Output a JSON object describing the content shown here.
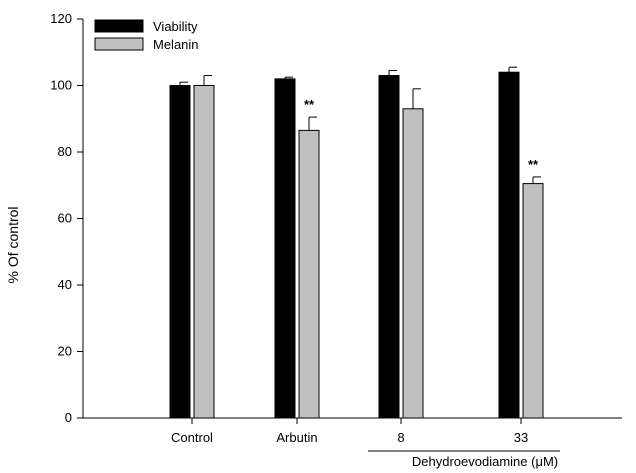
{
  "chart_data": {
    "type": "bar",
    "ylabel": "% Of control",
    "ylim": [
      0,
      120
    ],
    "yticks": [
      0,
      20,
      40,
      60,
      80,
      100,
      120
    ],
    "categories": [
      "Control",
      "Arbutin",
      "8",
      "33"
    ],
    "group_label": "Dehydroevodiamine (μM)",
    "series": [
      {
        "name": "Viability",
        "color": "#000000",
        "values": [
          100,
          102,
          103,
          104
        ],
        "errors": [
          1,
          0.5,
          1.5,
          1.5
        ],
        "annotations": [
          "",
          "",
          "",
          ""
        ]
      },
      {
        "name": "Melanin",
        "color": "#c0c0c0",
        "values": [
          100,
          86.5,
          93,
          70.5
        ],
        "errors": [
          3,
          4,
          6,
          2
        ],
        "annotations": [
          "",
          "**",
          "",
          "**"
        ]
      }
    ],
    "legend": "top-left",
    "grid": false
  }
}
